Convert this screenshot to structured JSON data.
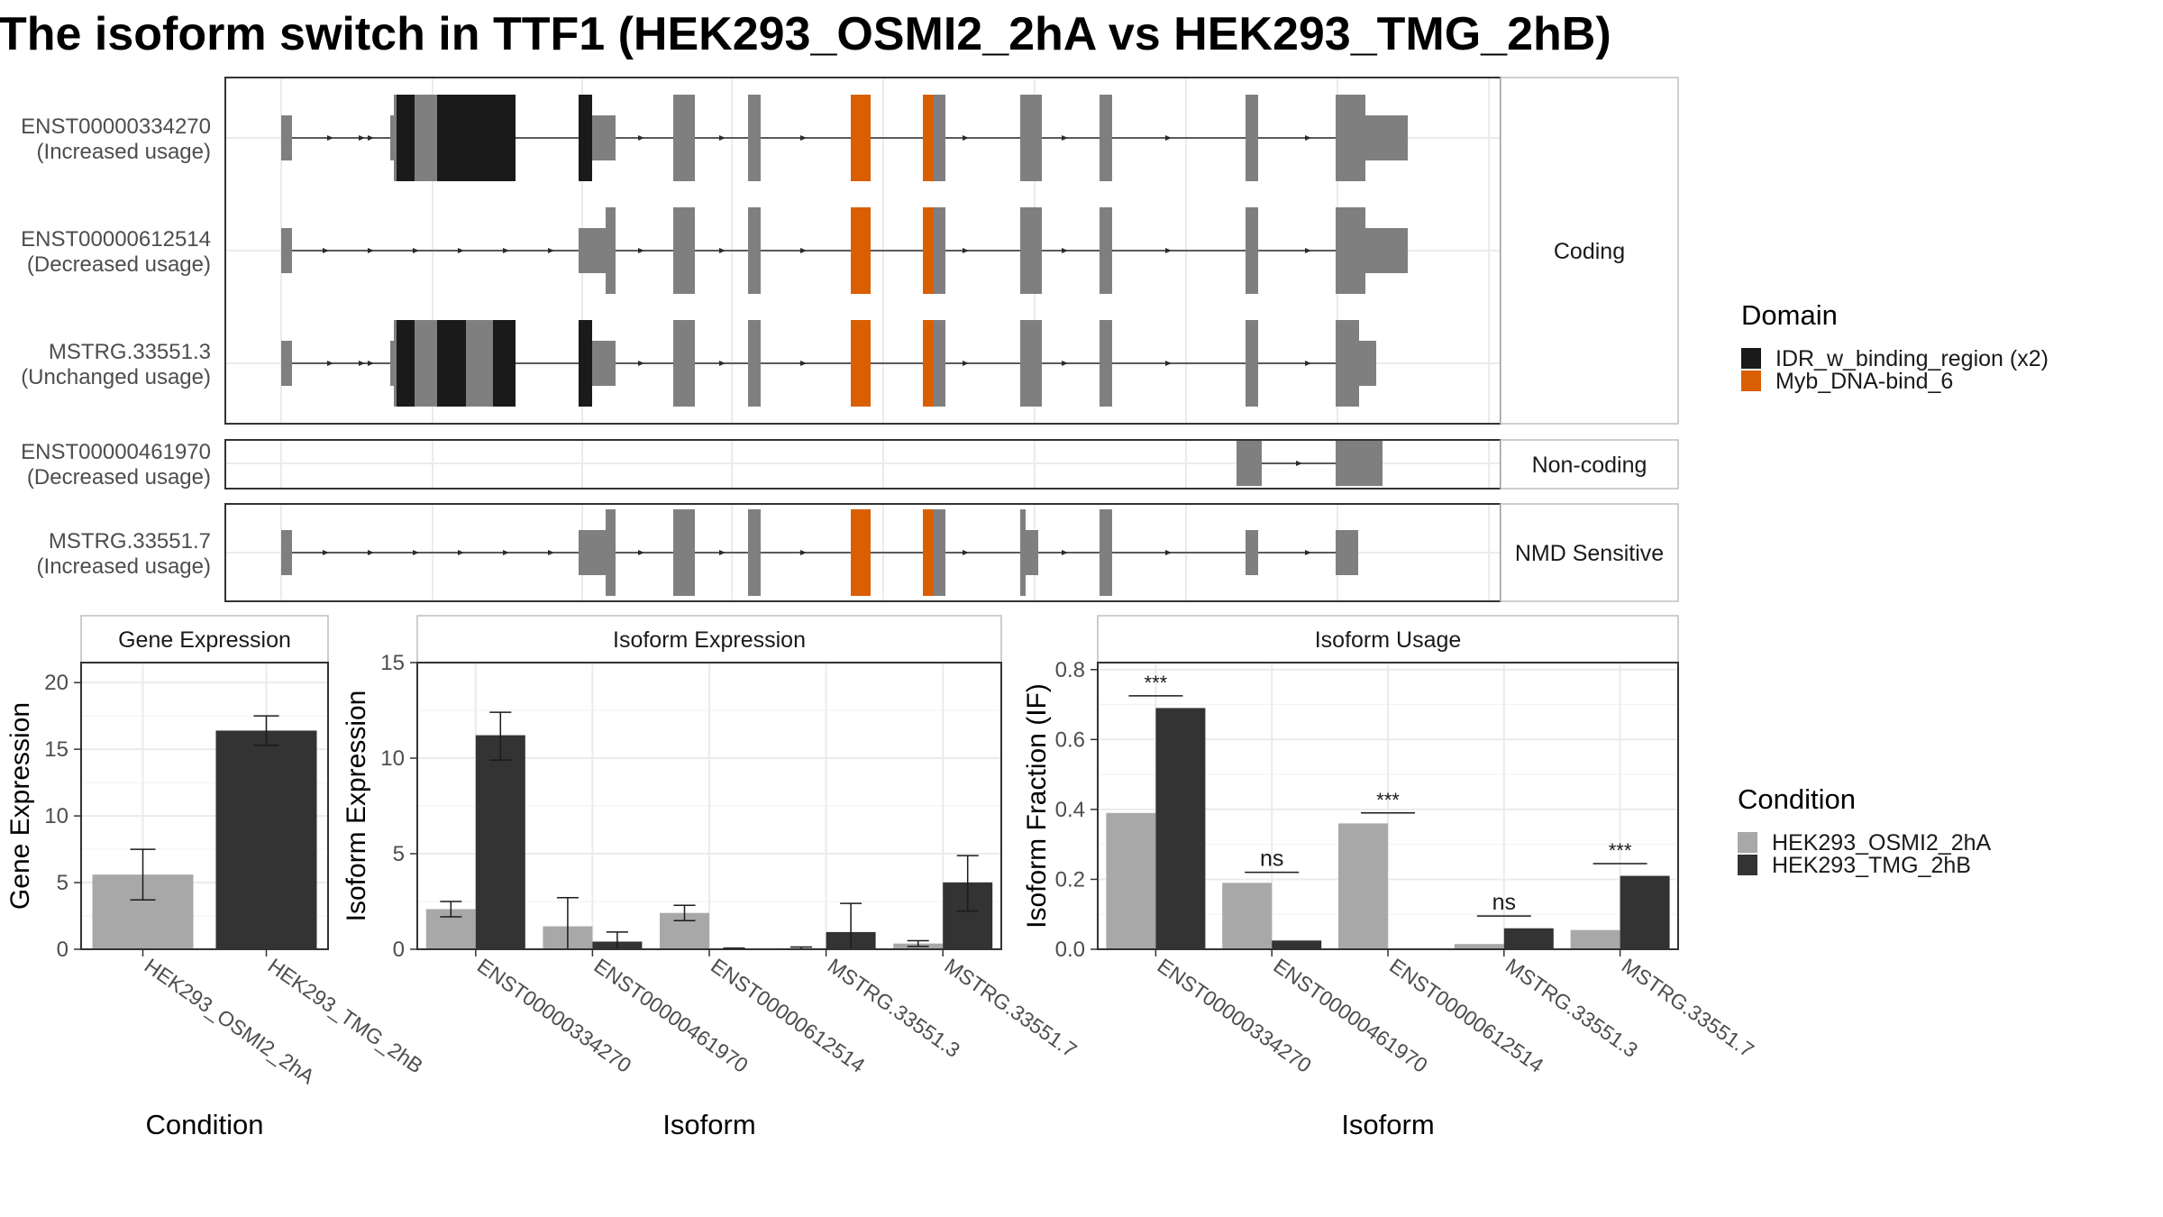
{
  "title": "The isoform switch in TTF1 (HEK293_OSMI2_2hA vs HEK293_TMG_2hB)",
  "colors": {
    "intron": "#2b2b2b",
    "exon": "#7f7f7f",
    "idr_domain": "#1a1a1a",
    "myb_domain": "#d95f02",
    "cond_a": "#a8a8a8",
    "cond_b": "#333333",
    "grid": "#ebebeb",
    "strip_border": "#bdbdbd"
  },
  "structure": {
    "groups": [
      {
        "label": "Coding",
        "transcripts": [
          {
            "id": "ENST00000334270",
            "status": "(Increased usage)",
            "exons": [
              [
                0,
                12,
                "s"
              ],
              [
                121,
                125,
                "s"
              ],
              [
                125,
                230,
                "c"
              ],
              [
                330,
                345,
                "c"
              ],
              [
                345,
                371,
                "s"
              ],
              [
                435,
                459,
                "c"
              ],
              [
                518,
                532,
                "c"
              ],
              [
                632,
                654,
                "c"
              ],
              [
                712,
                737,
                "c"
              ],
              [
                820,
                844,
                "c"
              ],
              [
                908,
                922,
                "c"
              ],
              [
                1070,
                1084,
                "c"
              ],
              [
                1170,
                1203,
                "c"
              ],
              [
                1203,
                1250,
                "s"
              ]
            ],
            "domains": [
              [
                128,
                148,
                "idr"
              ],
              [
                173,
                260,
                "idr"
              ],
              [
                330,
                345,
                "idr"
              ],
              [
                632,
                654,
                "myb"
              ],
              [
                712,
                724,
                "myb"
              ]
            ],
            "arrows": [
              55,
              90,
              100,
              400,
              490,
              580,
              760,
              870,
              985,
              1140,
              1210
            ]
          },
          {
            "id": "ENST00000612514",
            "status": "(Decreased usage)",
            "exons": [
              [
                0,
                12,
                "s"
              ],
              [
                330,
                360,
                "s"
              ],
              [
                360,
                371,
                "c"
              ],
              [
                435,
                459,
                "c"
              ],
              [
                518,
                532,
                "c"
              ],
              [
                632,
                654,
                "c"
              ],
              [
                712,
                737,
                "c"
              ],
              [
                820,
                844,
                "c"
              ],
              [
                908,
                922,
                "c"
              ],
              [
                1070,
                1084,
                "c"
              ],
              [
                1170,
                1203,
                "c"
              ],
              [
                1203,
                1250,
                "s"
              ]
            ],
            "domains": [
              [
                632,
                654,
                "myb"
              ],
              [
                712,
                724,
                "myb"
              ]
            ],
            "arrows": [
              50,
              100,
              150,
              200,
              250,
              300,
              400,
              490,
              580,
              760,
              870,
              985,
              1140
            ]
          },
          {
            "id": "MSTRG.33551.3",
            "status": "(Unchanged usage)",
            "exons": [
              [
                0,
                12,
                "s"
              ],
              [
                121,
                125,
                "s"
              ],
              [
                125,
                260,
                "c"
              ],
              [
                330,
                345,
                "c"
              ],
              [
                345,
                371,
                "s"
              ],
              [
                435,
                459,
                "c"
              ],
              [
                518,
                532,
                "c"
              ],
              [
                632,
                654,
                "c"
              ],
              [
                712,
                737,
                "c"
              ],
              [
                820,
                844,
                "c"
              ],
              [
                908,
                922,
                "c"
              ],
              [
                1070,
                1084,
                "c"
              ],
              [
                1170,
                1196,
                "c"
              ],
              [
                1196,
                1215,
                "s"
              ]
            ],
            "domains": [
              [
                128,
                148,
                "idr"
              ],
              [
                173,
                205,
                "idr"
              ],
              [
                235,
                260,
                "idr"
              ],
              [
                330,
                345,
                "idr"
              ],
              [
                632,
                654,
                "myb"
              ],
              [
                712,
                724,
                "myb"
              ]
            ],
            "arrows": [
              55,
              90,
              100,
              400,
              490,
              580,
              760,
              870,
              985,
              1140
            ]
          }
        ]
      },
      {
        "label": "Non-coding",
        "transcripts": [
          {
            "id": "ENST00000461970",
            "status": "(Decreased usage)",
            "exons": [
              [
                1060,
                1088,
                "s"
              ],
              [
                1170,
                1222,
                "s"
              ]
            ],
            "domains": [],
            "arrows": [
              1130
            ]
          }
        ]
      },
      {
        "label": "NMD Sensitive",
        "transcripts": [
          {
            "id": "MSTRG.33551.7",
            "status": "(Increased usage)",
            "exons": [
              [
                0,
                12,
                "s"
              ],
              [
                330,
                360,
                "s"
              ],
              [
                360,
                371,
                "c"
              ],
              [
                435,
                459,
                "c"
              ],
              [
                518,
                532,
                "c"
              ],
              [
                632,
                654,
                "c"
              ],
              [
                712,
                737,
                "c"
              ],
              [
                820,
                826,
                "c"
              ],
              [
                826,
                840,
                "s"
              ],
              [
                908,
                922,
                "c"
              ],
              [
                1070,
                1084,
                "s"
              ],
              [
                1170,
                1195,
                "s"
              ]
            ],
            "domains": [
              [
                632,
                654,
                "myb"
              ],
              [
                712,
                724,
                "myb"
              ]
            ],
            "arrows": [
              50,
              100,
              150,
              200,
              250,
              300,
              400,
              490,
              580,
              760,
              870,
              985,
              1140
            ]
          }
        ]
      }
    ]
  },
  "legend_domain": {
    "title": "Domain",
    "items": [
      {
        "label": "IDR_w_binding_region (x2)",
        "color": "#1a1a1a"
      },
      {
        "label": "Myb_DNA-bind_6",
        "color": "#d95f02"
      }
    ]
  },
  "legend_condition": {
    "title": "Condition",
    "items": [
      {
        "label": "HEK293_OSMI2_2hA",
        "color": "#a8a8a8"
      },
      {
        "label": "HEK293_TMG_2hB",
        "color": "#333333"
      }
    ]
  },
  "chart_data": [
    {
      "type": "bar",
      "title": "Gene Expression",
      "xlabel": "Condition",
      "ylabel": "Gene Expression",
      "categories": [
        "HEK293_OSMI2_2hA",
        "HEK293_TMG_2hB"
      ],
      "values": [
        5.6,
        16.4
      ],
      "error": [
        [
          3.7,
          7.5
        ],
        [
          15.3,
          17.5
        ]
      ],
      "ylim": [
        0,
        21.5
      ],
      "yticks": [
        0,
        5,
        10,
        15,
        20
      ],
      "grid": true
    },
    {
      "type": "bar",
      "title": "Isoform Expression",
      "xlabel": "Isoform",
      "ylabel": "Isoform Expression",
      "categories": [
        "ENST00000334270",
        "ENST00000461970",
        "ENST00000612514",
        "MSTRG.33551.3",
        "MSTRG.33551.7"
      ],
      "series": [
        {
          "name": "HEK293_OSMI2_2hA",
          "values": [
            2.1,
            1.2,
            1.9,
            0.06,
            0.3
          ],
          "error": [
            [
              1.7,
              2.5
            ],
            [
              0.0,
              2.7
            ],
            [
              1.5,
              2.3
            ],
            [
              0.0,
              0.12
            ],
            [
              0.15,
              0.45
            ]
          ]
        },
        {
          "name": "HEK293_TMG_2hB",
          "values": [
            11.2,
            0.4,
            0.03,
            0.9,
            3.5
          ],
          "error": [
            [
              9.9,
              12.4
            ],
            [
              0.0,
              0.9
            ],
            [
              0.0,
              0.06
            ],
            [
              0.0,
              2.4
            ],
            [
              2.0,
              4.9
            ]
          ]
        }
      ],
      "ylim": [
        0,
        15
      ],
      "yticks": [
        0,
        5,
        10,
        15
      ],
      "grid": true
    },
    {
      "type": "bar",
      "title": "Isoform Usage",
      "xlabel": "Isoform",
      "ylabel": "Isoform Fraction (IF)",
      "categories": [
        "ENST00000334270",
        "ENST00000461970",
        "ENST00000612514",
        "MSTRG.33551.3",
        "MSTRG.33551.7"
      ],
      "series": [
        {
          "name": "HEK293_OSMI2_2hA",
          "values": [
            0.39,
            0.19,
            0.36,
            0.015,
            0.055
          ]
        },
        {
          "name": "HEK293_TMG_2hB",
          "values": [
            0.69,
            0.025,
            0.0,
            0.06,
            0.21
          ]
        }
      ],
      "significance": [
        {
          "label": "***",
          "y": 0.725
        },
        {
          "label": "ns",
          "y": 0.22
        },
        {
          "label": "***",
          "y": 0.39
        },
        {
          "label": "ns",
          "y": 0.095
        },
        {
          "label": "***",
          "y": 0.245
        }
      ],
      "ylim": [
        0,
        0.82
      ],
      "yticks": [
        "0.0",
        "0.2",
        "0.4",
        "0.6",
        "0.8"
      ],
      "grid": true
    }
  ]
}
